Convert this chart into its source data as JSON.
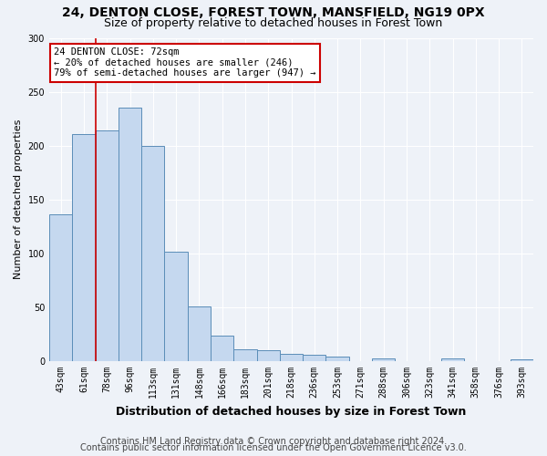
{
  "title1": "24, DENTON CLOSE, FOREST TOWN, MANSFIELD, NG19 0PX",
  "title2": "Size of property relative to detached houses in Forest Town",
  "xlabel": "Distribution of detached houses by size in Forest Town",
  "ylabel": "Number of detached properties",
  "categories": [
    "43sqm",
    "61sqm",
    "78sqm",
    "96sqm",
    "113sqm",
    "131sqm",
    "148sqm",
    "166sqm",
    "183sqm",
    "201sqm",
    "218sqm",
    "236sqm",
    "253sqm",
    "271sqm",
    "288sqm",
    "306sqm",
    "323sqm",
    "341sqm",
    "358sqm",
    "376sqm",
    "393sqm"
  ],
  "values": [
    136,
    211,
    214,
    235,
    200,
    102,
    51,
    24,
    11,
    10,
    7,
    6,
    4,
    0,
    3,
    0,
    0,
    3,
    0,
    0,
    2
  ],
  "bar_color": "#c5d8ef",
  "bar_edge_color": "#5b8db8",
  "vline_color": "#cc0000",
  "annotation_text": "24 DENTON CLOSE: 72sqm\n← 20% of detached houses are smaller (246)\n79% of semi-detached houses are larger (947) →",
  "annotation_box_color": "white",
  "annotation_box_edge_color": "#cc0000",
  "ylim": [
    0,
    300
  ],
  "yticks": [
    0,
    50,
    100,
    150,
    200,
    250,
    300
  ],
  "footer1": "Contains HM Land Registry data © Crown copyright and database right 2024.",
  "footer2": "Contains public sector information licensed under the Open Government Licence v3.0.",
  "background_color": "#eef2f8",
  "title_fontsize": 10,
  "subtitle_fontsize": 9,
  "ylabel_fontsize": 8,
  "xlabel_fontsize": 9,
  "tick_fontsize": 7,
  "annotation_fontsize": 7.5,
  "footer_fontsize": 7
}
